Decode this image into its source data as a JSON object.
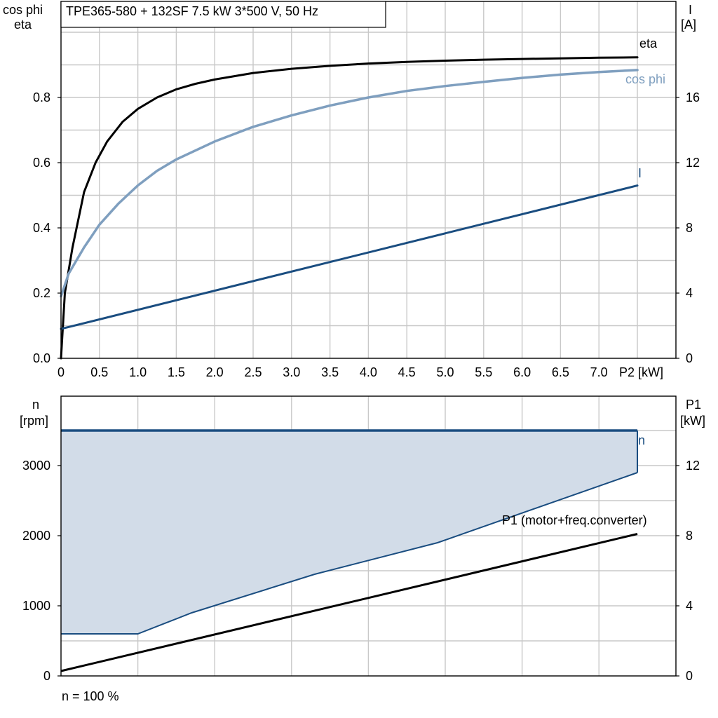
{
  "title": "TPE365-580 + 132SF   7.5 kW   3*500 V, 50 Hz",
  "footnote": "n = 100 %",
  "colors": {
    "eta": "#000000",
    "cos_phi": "#7f9fbf",
    "current": "#1a4d80",
    "speed": "#1a4d80",
    "speed_band_fill": "#d2dce8",
    "p1": "#000000"
  },
  "chart_data": [
    {
      "type": "line",
      "name": "efficiency-chart",
      "xlabel": "P2 [kW]",
      "ylabel_left": [
        "cos phi",
        "eta"
      ],
      "ylabel_right": [
        "I",
        "[A]"
      ],
      "xlim": [
        0,
        7.5
      ],
      "ylim_left": [
        0,
        1.0
      ],
      "ylim_right": [
        0,
        20
      ],
      "x_ticks": [
        "0",
        "0.5",
        "1.0",
        "1.5",
        "2.0",
        "2.5",
        "3.0",
        "3.5",
        "4.0",
        "4.5",
        "5.0",
        "5.5",
        "6.0",
        "6.5",
        "7.0"
      ],
      "y_ticks_left": [
        "0.0",
        "0.2",
        "0.4",
        "0.6",
        "0.8"
      ],
      "y_ticks_right": [
        "0",
        "4",
        "8",
        "12",
        "16"
      ],
      "grid": true,
      "series": [
        {
          "name": "eta",
          "axis": "left",
          "x": [
            0,
            0.05,
            0.15,
            0.3,
            0.45,
            0.6,
            0.8,
            1.0,
            1.25,
            1.5,
            1.75,
            2.0,
            2.5,
            3.0,
            3.5,
            4.0,
            4.5,
            5.0,
            5.5,
            6.0,
            6.5,
            7.0,
            7.5
          ],
          "values": [
            0,
            0.2,
            0.34,
            0.51,
            0.6,
            0.665,
            0.725,
            0.765,
            0.8,
            0.825,
            0.842,
            0.855,
            0.875,
            0.888,
            0.897,
            0.904,
            0.909,
            0.913,
            0.916,
            0.918,
            0.92,
            0.922,
            0.923
          ]
        },
        {
          "name": "cos phi",
          "axis": "left",
          "x": [
            0,
            0.1,
            0.3,
            0.5,
            0.75,
            1.0,
            1.25,
            1.5,
            2.0,
            2.5,
            3.0,
            3.5,
            4.0,
            4.5,
            5.0,
            5.5,
            6.0,
            6.5,
            7.0,
            7.5
          ],
          "values": [
            0.19,
            0.26,
            0.34,
            0.41,
            0.475,
            0.53,
            0.575,
            0.61,
            0.665,
            0.71,
            0.745,
            0.775,
            0.8,
            0.82,
            0.835,
            0.848,
            0.86,
            0.87,
            0.878,
            0.884
          ]
        },
        {
          "name": "I",
          "axis": "right",
          "x": [
            0,
            7.5
          ],
          "values": [
            1.8,
            10.6
          ]
        }
      ]
    },
    {
      "type": "area",
      "name": "speed-power-chart",
      "ylabel_left": [
        "n",
        "[rpm]"
      ],
      "ylabel_right": [
        "P1",
        "[kW]"
      ],
      "xlim": [
        0,
        7.5
      ],
      "ylim_left": [
        0,
        3500
      ],
      "ylim_right": [
        0,
        14
      ],
      "y_ticks_left": [
        "0",
        "1000",
        "2000",
        "3000"
      ],
      "y_ticks_right": [
        "0",
        "4",
        "8",
        "12"
      ],
      "grid": true,
      "series": [
        {
          "name": "n",
          "axis": "left",
          "x": [
            0,
            7.5
          ],
          "values": [
            3500,
            3500
          ]
        },
        {
          "name": "n-lower",
          "axis": "left",
          "x": [
            0,
            1.0,
            1.7,
            3.3,
            4.9,
            7.5
          ],
          "values": [
            600,
            600,
            900,
            1450,
            1900,
            2900
          ]
        },
        {
          "name": "P1 (motor+freq.converter)",
          "axis": "right",
          "x": [
            0,
            7.5
          ],
          "values": [
            0.28,
            8.1
          ]
        }
      ]
    }
  ]
}
